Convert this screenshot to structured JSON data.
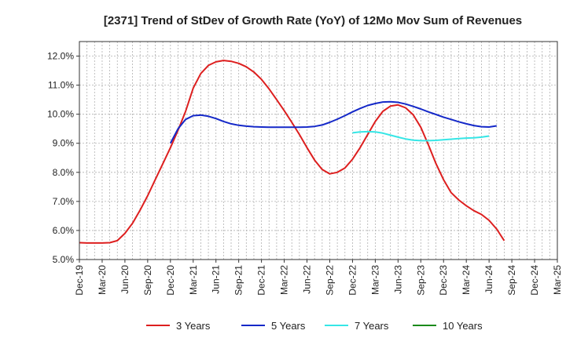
{
  "chart_data": {
    "type": "line",
    "title": "[2371]  Trend of StDev of Growth Rate (YoY) of 12Mo Mov Sum of Revenues",
    "xlabel": "",
    "ylabel": "",
    "ylim": [
      5.0,
      12.5
    ],
    "y_ticks": [
      5.0,
      6.0,
      7.0,
      8.0,
      9.0,
      10.0,
      11.0,
      12.0
    ],
    "y_tick_labels": [
      "5.0%",
      "6.0%",
      "7.0%",
      "8.0%",
      "9.0%",
      "10.0%",
      "11.0%",
      "12.0%"
    ],
    "x_tick_labels": [
      "Dec-19",
      "Mar-20",
      "Jun-20",
      "Sep-20",
      "Dec-20",
      "Mar-21",
      "Jun-21",
      "Sep-21",
      "Dec-21",
      "Mar-22",
      "Jun-22",
      "Sep-22",
      "Dec-22",
      "Mar-23",
      "Jun-23",
      "Sep-23",
      "Dec-23",
      "Mar-24",
      "Jun-24",
      "Sep-24",
      "Dec-24",
      "Mar-25"
    ],
    "grid": true,
    "legend_position": "bottom",
    "series": [
      {
        "name": "3 Years",
        "color": "#dd1f1f",
        "start_index": 0,
        "values": [
          5.58,
          5.57,
          5.57,
          5.57,
          5.58,
          5.65,
          5.9,
          6.25,
          6.7,
          7.2,
          7.75,
          8.3,
          8.85,
          9.45,
          10.1,
          10.9,
          11.4,
          11.68,
          11.8,
          11.85,
          11.82,
          11.75,
          11.63,
          11.45,
          11.2,
          10.87,
          10.5,
          10.12,
          9.72,
          9.3,
          8.85,
          8.42,
          8.1,
          7.95,
          8.0,
          8.15,
          8.45,
          8.85,
          9.3,
          9.75,
          10.1,
          10.28,
          10.32,
          10.22,
          9.98,
          9.55,
          8.95,
          8.3,
          7.75,
          7.3,
          7.05,
          6.85,
          6.68,
          6.55,
          6.35,
          6.05,
          5.65
        ]
      },
      {
        "name": "5 Years",
        "color": "#1428c8",
        "start_index": 12,
        "values": [
          9.0,
          9.5,
          9.82,
          9.95,
          9.97,
          9.93,
          9.85,
          9.75,
          9.67,
          9.62,
          9.59,
          9.57,
          9.56,
          9.55,
          9.55,
          9.55,
          9.55,
          9.55,
          9.56,
          9.58,
          9.63,
          9.72,
          9.83,
          9.95,
          10.08,
          10.2,
          10.3,
          10.37,
          10.42,
          10.43,
          10.41,
          10.35,
          10.27,
          10.18,
          10.08,
          9.99,
          9.9,
          9.82,
          9.74,
          9.67,
          9.61,
          9.57,
          9.56,
          9.6
        ]
      },
      {
        "name": "7 Years",
        "color": "#36e6e6",
        "start_index": 36,
        "values": [
          9.36,
          9.39,
          9.4,
          9.39,
          9.35,
          9.28,
          9.21,
          9.15,
          9.11,
          9.09,
          9.09,
          9.1,
          9.12,
          9.14,
          9.16,
          9.18,
          9.19,
          9.21,
          9.25
        ]
      },
      {
        "name": "10 Years",
        "color": "#1a8a1a",
        "start_index": 0,
        "values": []
      }
    ]
  }
}
